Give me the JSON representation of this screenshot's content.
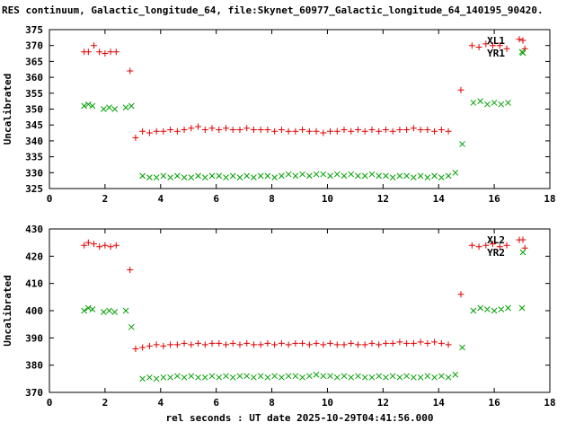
{
  "title": "RES continuum, Galactic_longitude_64, file:Skynet_60977_Galactic_longitude_64_140195_90420.",
  "xlabel": "rel seconds : UT date 2025-10-29T04:41:56.000",
  "colors": {
    "red": "#e00000",
    "green": "#00a000",
    "axis": "#000000",
    "background": "#ffffff"
  },
  "chart_data": [
    {
      "type": "scatter",
      "title": "",
      "ylabel": "Uncalibrated",
      "xlabel": "",
      "xlim": [
        0,
        18
      ],
      "ylim": [
        325,
        375
      ],
      "xticks": [
        0,
        2,
        4,
        6,
        8,
        10,
        12,
        14,
        16,
        18
      ],
      "yticks": [
        325,
        330,
        335,
        340,
        345,
        350,
        355,
        360,
        365,
        370,
        375
      ],
      "grid": false,
      "legend_position": "top-right",
      "series": [
        {
          "name": "XL1",
          "marker": "plus",
          "color": "#e00000",
          "x": [
            1.25,
            1.4,
            1.6,
            1.8,
            2.0,
            2.2,
            2.4,
            2.9,
            3.1,
            3.35,
            3.6,
            3.85,
            4.1,
            4.35,
            4.6,
            4.85,
            5.1,
            5.35,
            5.6,
            5.85,
            6.1,
            6.35,
            6.6,
            6.85,
            7.1,
            7.35,
            7.6,
            7.85,
            8.1,
            8.35,
            8.6,
            8.85,
            9.1,
            9.35,
            9.6,
            9.85,
            10.1,
            10.35,
            10.6,
            10.85,
            11.1,
            11.35,
            11.6,
            11.85,
            12.1,
            12.35,
            12.6,
            12.85,
            13.1,
            13.35,
            13.6,
            13.85,
            14.1,
            14.35,
            14.8,
            15.2,
            15.45,
            15.7,
            15.95,
            16.2,
            16.45,
            16.9,
            17.1
          ],
          "y": [
            368,
            368,
            370,
            368,
            367.5,
            368,
            368,
            362,
            341,
            343,
            342.5,
            343,
            343,
            343.5,
            343,
            343.5,
            344,
            344.5,
            343.5,
            344,
            343.5,
            344,
            343.5,
            343.5,
            344,
            343.5,
            343.5,
            343.5,
            343,
            343.5,
            343,
            343,
            343.5,
            343,
            343,
            342.5,
            343,
            343,
            343.5,
            343,
            343.5,
            343,
            343.5,
            343,
            343.5,
            343,
            343.5,
            343.5,
            344,
            343.5,
            343.5,
            343,
            343.5,
            343,
            356,
            370,
            369.5,
            370.5,
            370,
            370,
            369,
            372,
            369
          ]
        },
        {
          "name": "YR1",
          "marker": "cross",
          "color": "#00a000",
          "x": [
            1.25,
            1.4,
            1.55,
            1.95,
            2.15,
            2.35,
            2.75,
            2.95,
            3.35,
            3.6,
            3.85,
            4.1,
            4.35,
            4.6,
            4.85,
            5.1,
            5.35,
            5.6,
            5.85,
            6.1,
            6.35,
            6.6,
            6.85,
            7.1,
            7.35,
            7.6,
            7.85,
            8.1,
            8.35,
            8.6,
            8.85,
            9.1,
            9.35,
            9.6,
            9.85,
            10.1,
            10.35,
            10.6,
            10.85,
            11.1,
            11.35,
            11.6,
            11.85,
            12.1,
            12.35,
            12.6,
            12.85,
            13.1,
            13.35,
            13.6,
            13.85,
            14.1,
            14.35,
            14.6,
            14.85,
            15.25,
            15.5,
            15.75,
            16.0,
            16.25,
            16.5,
            17.0
          ],
          "y": [
            351,
            351.5,
            351,
            350,
            350.5,
            350,
            350.5,
            351,
            329,
            328.5,
            328.5,
            329,
            328.5,
            329,
            328.5,
            328.5,
            329,
            328.5,
            329,
            329,
            328.5,
            329,
            328.5,
            329,
            328.5,
            329,
            329,
            328.5,
            329,
            329.5,
            329,
            329.5,
            329,
            329.5,
            329.5,
            329,
            329.5,
            329,
            329.5,
            329,
            329,
            329.5,
            329,
            329,
            328.5,
            329,
            329,
            328.5,
            329,
            328.5,
            329,
            328.5,
            329,
            330,
            339,
            352,
            352.5,
            351.5,
            352,
            351.5,
            352,
            368
          ]
        }
      ]
    },
    {
      "type": "scatter",
      "title": "",
      "ylabel": "Uncalibrated",
      "xlabel": "rel seconds : UT date 2025-10-29T04:41:56.000",
      "xlim": [
        0,
        18
      ],
      "ylim": [
        370,
        430
      ],
      "xticks": [
        0,
        2,
        4,
        6,
        8,
        10,
        12,
        14,
        16,
        18
      ],
      "yticks": [
        370,
        380,
        390,
        400,
        410,
        420,
        430
      ],
      "grid": false,
      "legend_position": "top-right",
      "series": [
        {
          "name": "XL2",
          "marker": "plus",
          "color": "#e00000",
          "x": [
            1.25,
            1.4,
            1.6,
            1.8,
            2.0,
            2.2,
            2.4,
            2.9,
            3.1,
            3.35,
            3.6,
            3.85,
            4.1,
            4.35,
            4.6,
            4.85,
            5.1,
            5.35,
            5.6,
            5.85,
            6.1,
            6.35,
            6.6,
            6.85,
            7.1,
            7.35,
            7.6,
            7.85,
            8.1,
            8.35,
            8.6,
            8.85,
            9.1,
            9.35,
            9.6,
            9.85,
            10.1,
            10.35,
            10.6,
            10.85,
            11.1,
            11.35,
            11.6,
            11.85,
            12.1,
            12.35,
            12.6,
            12.85,
            13.1,
            13.35,
            13.6,
            13.85,
            14.1,
            14.35,
            14.8,
            15.2,
            15.45,
            15.7,
            15.95,
            16.2,
            16.45,
            16.9,
            17.1
          ],
          "y": [
            424,
            425,
            424.5,
            423.5,
            424,
            423.5,
            424,
            415,
            386,
            386.5,
            387,
            387.5,
            387,
            387.5,
            387.5,
            388,
            387.5,
            388,
            387.5,
            388,
            388,
            387.5,
            388,
            387.5,
            388,
            387.5,
            387.5,
            388,
            387.5,
            388,
            387.5,
            388,
            388,
            387.5,
            388,
            387.5,
            388,
            387.5,
            387.5,
            388,
            387.5,
            387.5,
            388,
            387.5,
            388,
            388,
            388.5,
            388,
            388,
            388.5,
            388,
            388.5,
            388,
            387.5,
            406,
            424,
            423.5,
            424,
            424.5,
            423.5,
            424,
            426,
            423
          ]
        },
        {
          "name": "YR2",
          "marker": "cross",
          "color": "#00a000",
          "x": [
            1.25,
            1.4,
            1.55,
            1.95,
            2.15,
            2.35,
            2.75,
            2.95,
            3.35,
            3.6,
            3.85,
            4.1,
            4.35,
            4.6,
            4.85,
            5.1,
            5.35,
            5.6,
            5.85,
            6.1,
            6.35,
            6.6,
            6.85,
            7.1,
            7.35,
            7.6,
            7.85,
            8.1,
            8.35,
            8.6,
            8.85,
            9.1,
            9.35,
            9.6,
            9.85,
            10.1,
            10.35,
            10.6,
            10.85,
            11.1,
            11.35,
            11.6,
            11.85,
            12.1,
            12.35,
            12.6,
            12.85,
            13.1,
            13.35,
            13.6,
            13.85,
            14.1,
            14.35,
            14.6,
            14.85,
            15.25,
            15.5,
            15.75,
            16.0,
            16.25,
            16.5,
            17.0
          ],
          "y": [
            400,
            401,
            400.5,
            399.5,
            400,
            399.5,
            400,
            394,
            375,
            375.5,
            375,
            375.5,
            375.5,
            376,
            375.5,
            376,
            375.5,
            375.5,
            376,
            375.5,
            376,
            375.5,
            376,
            376,
            375.5,
            376,
            375.5,
            376,
            375.5,
            376,
            376,
            375.5,
            376,
            376.5,
            376,
            376,
            375.5,
            376,
            375.5,
            376,
            375.5,
            375.5,
            376,
            375.5,
            376,
            375.5,
            376,
            375.5,
            375.5,
            376,
            375.5,
            376,
            375.5,
            376.5,
            386.5,
            400,
            401,
            400.5,
            400,
            400.5,
            401,
            401
          ]
        }
      ]
    }
  ]
}
